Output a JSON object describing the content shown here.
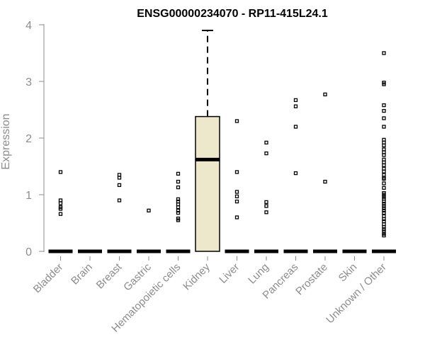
{
  "chart_data": {
    "type": "boxplot",
    "title": "ENSG00000234070 - RP11-415L24.1",
    "xlabel": "",
    "ylabel": "Expression",
    "ylim": [
      0,
      4
    ],
    "yticks": [
      0,
      1,
      2,
      3,
      4
    ],
    "categories": [
      "Bladder",
      "Brain",
      "Breast",
      "Gastric",
      "Hematopoietic cells",
      "Kidney",
      "Liver",
      "Lung",
      "Pancreas",
      "Prostate",
      "Skin",
      "Unknown / Other"
    ],
    "box_fill": "#ede7cc",
    "boxes": [
      {
        "category": "Bladder",
        "min": 0,
        "q1": 0,
        "median": 0,
        "q3": 0,
        "max": 0,
        "outliers": [
          1.4,
          0.9,
          0.85,
          0.78,
          0.75,
          0.66
        ]
      },
      {
        "category": "Brain",
        "min": 0,
        "q1": 0,
        "median": 0,
        "q3": 0,
        "max": 0,
        "outliers": []
      },
      {
        "category": "Breast",
        "min": 0,
        "q1": 0,
        "median": 0,
        "q3": 0,
        "max": 0,
        "outliers": [
          1.35,
          1.3,
          1.17,
          0.9
        ]
      },
      {
        "category": "Gastric",
        "min": 0,
        "q1": 0,
        "median": 0,
        "q3": 0,
        "max": 0,
        "outliers": [
          0.72
        ]
      },
      {
        "category": "Hematopoietic cells",
        "min": 0,
        "q1": 0,
        "median": 0,
        "q3": 0,
        "max": 0,
        "outliers": [
          1.37,
          1.23,
          1.13,
          0.92,
          0.88,
          0.83,
          0.78,
          0.72,
          0.68,
          0.58,
          0.55
        ]
      },
      {
        "category": "Kidney",
        "min": 0,
        "q1": 0,
        "median": 1.62,
        "q3": 2.38,
        "max": 3.9,
        "outliers": []
      },
      {
        "category": "Liver",
        "min": 0,
        "q1": 0,
        "median": 0,
        "q3": 0,
        "max": 0,
        "outliers": [
          2.3,
          1.4,
          1.05,
          0.97,
          0.88,
          0.6
        ]
      },
      {
        "category": "Lung",
        "min": 0,
        "q1": 0,
        "median": 0,
        "q3": 0,
        "max": 0,
        "outliers": [
          1.92,
          1.73,
          0.87,
          0.8,
          0.69
        ]
      },
      {
        "category": "Pancreas",
        "min": 0,
        "q1": 0,
        "median": 0,
        "q3": 0,
        "max": 0,
        "outliers": [
          2.67,
          2.56,
          2.2,
          1.38
        ]
      },
      {
        "category": "Prostate",
        "min": 0,
        "q1": 0,
        "median": 0,
        "q3": 0,
        "max": 0,
        "outliers": [
          2.77,
          1.23
        ]
      },
      {
        "category": "Skin",
        "min": 0,
        "q1": 0,
        "median": 0,
        "q3": 0,
        "max": 0,
        "outliers": []
      },
      {
        "category": "Unknown / Other",
        "min": 0,
        "q1": 0,
        "median": 0,
        "q3": 0,
        "max": 0,
        "outliers": [
          3.5,
          2.98,
          2.95,
          2.58,
          2.48,
          2.35,
          2.2,
          1.97,
          1.92,
          1.87,
          1.8,
          1.75,
          1.7,
          1.62,
          1.57,
          1.52,
          1.46,
          1.41,
          1.35,
          1.3,
          1.28,
          1.2,
          1.12,
          1.03,
          1.0,
          0.96,
          0.93,
          0.88,
          0.84,
          0.8,
          0.76,
          0.72,
          0.68,
          0.62,
          0.57,
          0.53,
          0.48,
          0.43,
          0.39,
          0.35,
          0.31,
          0.28
        ]
      }
    ]
  }
}
